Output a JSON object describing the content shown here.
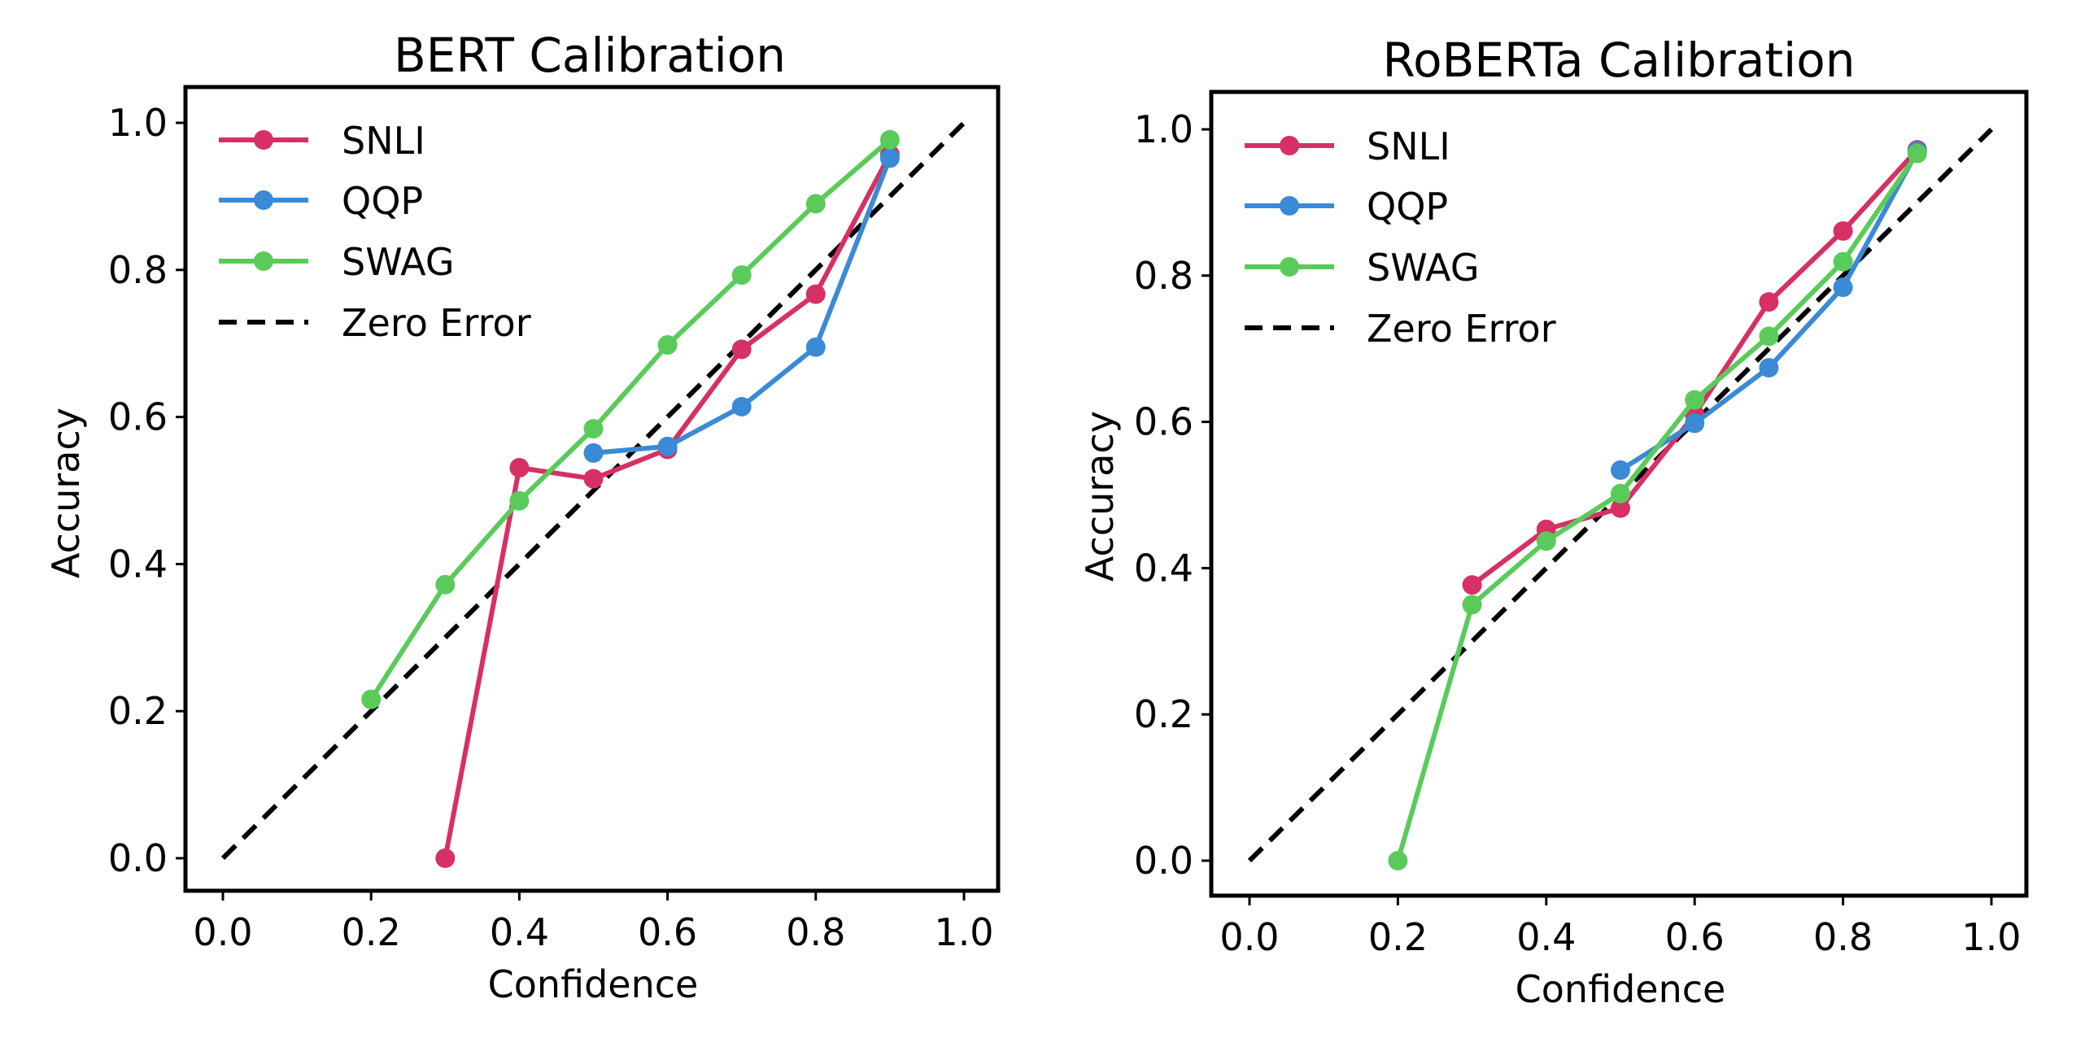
{
  "figure": {
    "description": "Side-by-side calibration reliability plots"
  },
  "chart_data": [
    {
      "type": "line",
      "title": "BERT Calibration",
      "xlabel": "Confidence",
      "ylabel": "Accuracy",
      "xlim": [
        -0.05,
        1.05
      ],
      "ylim": [
        -0.05,
        1.05
      ],
      "xticks": [
        0.0,
        0.2,
        0.4,
        0.6,
        0.8,
        1.0
      ],
      "xtick_labels": [
        "0.0",
        "0.2",
        "0.4",
        "0.6",
        "0.8",
        "1.0"
      ],
      "yticks": [
        0.0,
        0.2,
        0.4,
        0.6,
        0.8,
        1.0
      ],
      "ytick_labels": [
        "0.0",
        "0.2",
        "0.4",
        "0.6",
        "0.8",
        "1.0"
      ],
      "grid": false,
      "legend_position": "top-left",
      "series": [
        {
          "name": "SNLI",
          "color": "#d63064",
          "marker": "circle",
          "x": [
            0.3,
            0.4,
            0.5,
            0.6,
            0.7,
            0.8,
            0.9
          ],
          "y": [
            0.0,
            0.531,
            0.516,
            0.556,
            0.692,
            0.767,
            0.957
          ]
        },
        {
          "name": "QQP",
          "color": "#3a8ad6",
          "marker": "circle",
          "x": [
            0.5,
            0.6,
            0.7,
            0.8,
            0.9
          ],
          "y": [
            0.551,
            0.56,
            0.614,
            0.695,
            0.952
          ]
        },
        {
          "name": "SWAG",
          "color": "#5acb5a",
          "marker": "circle",
          "x": [
            0.2,
            0.3,
            0.4,
            0.5,
            0.6,
            0.7,
            0.8,
            0.9
          ],
          "y": [
            0.216,
            0.372,
            0.486,
            0.584,
            0.698,
            0.793,
            0.89,
            0.977
          ]
        }
      ],
      "reference_line": {
        "name": "Zero Error",
        "color": "#000000",
        "style": "dashed",
        "x": [
          0.0,
          1.0
        ],
        "y": [
          0.0,
          1.0
        ]
      }
    },
    {
      "type": "line",
      "title": "RoBERTa Calibration",
      "xlabel": "Confidence",
      "ylabel": "Accuracy",
      "xlim": [
        -0.05,
        1.05
      ],
      "ylim": [
        -0.05,
        1.05
      ],
      "xticks": [
        0.0,
        0.2,
        0.4,
        0.6,
        0.8,
        1.0
      ],
      "xtick_labels": [
        "0.0",
        "0.2",
        "0.4",
        "0.6",
        "0.8",
        "1.0"
      ],
      "yticks": [
        0.0,
        0.2,
        0.4,
        0.6,
        0.8,
        1.0
      ],
      "ytick_labels": [
        "0.0",
        "0.2",
        "0.4",
        "0.6",
        "0.8",
        "1.0"
      ],
      "grid": false,
      "legend_position": "top-left",
      "series": [
        {
          "name": "SNLI",
          "color": "#d63064",
          "marker": "circle",
          "x": [
            0.3,
            0.4,
            0.5,
            0.6,
            0.7,
            0.8,
            0.9
          ],
          "y": [
            0.377,
            0.453,
            0.482,
            0.61,
            0.764,
            0.861,
            0.972
          ]
        },
        {
          "name": "QQP",
          "color": "#3a8ad6",
          "marker": "circle",
          "x": [
            0.5,
            0.6,
            0.7,
            0.8,
            0.9
          ],
          "y": [
            0.534,
            0.598,
            0.674,
            0.784,
            0.97
          ]
        },
        {
          "name": "SWAG",
          "color": "#5acb5a",
          "marker": "circle",
          "x": [
            0.2,
            0.3,
            0.4,
            0.5,
            0.6,
            0.7,
            0.8,
            0.9
          ],
          "y": [
            0.0,
            0.35,
            0.437,
            0.502,
            0.63,
            0.717,
            0.819,
            0.967
          ]
        }
      ],
      "reference_line": {
        "name": "Zero Error",
        "color": "#000000",
        "style": "dashed",
        "x": [
          0.0,
          1.0
        ],
        "y": [
          0.0,
          1.0
        ]
      }
    }
  ]
}
